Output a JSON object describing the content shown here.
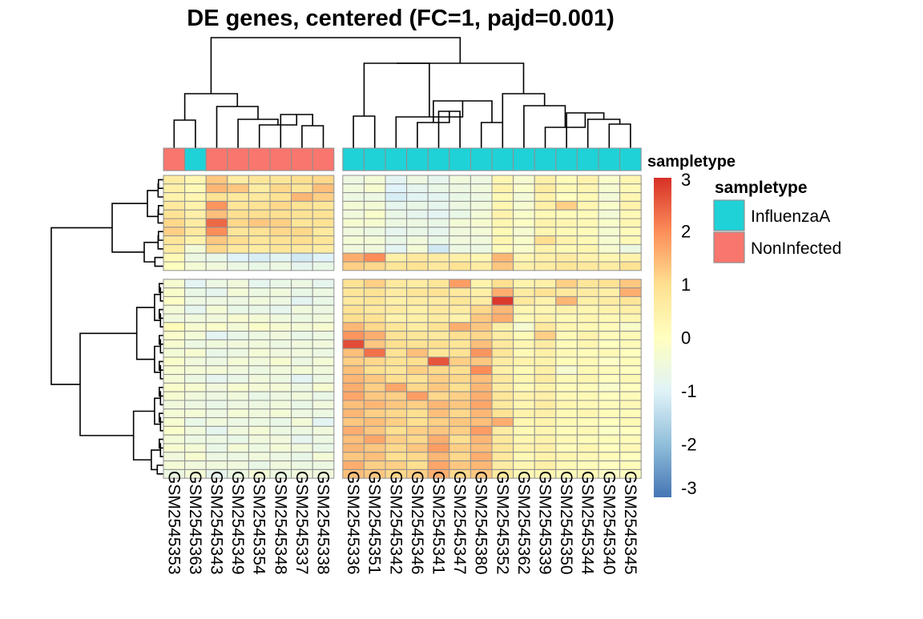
{
  "chart_data": {
    "type": "heatmap",
    "title": "DE genes, centered (FC=1, pajd=0.001)",
    "columns": [
      "GSM2545353",
      "GSM2545363",
      "GSM2545343",
      "GSM2545349",
      "GSM2545354",
      "GSM2545348",
      "GSM2545337",
      "GSM2545338",
      "GSM2545336",
      "GSM2545351",
      "GSM2545342",
      "GSM2545346",
      "GSM2545341",
      "GSM2545347",
      "GSM2545380",
      "GSM2545352",
      "GSM2545362",
      "GSM2545339",
      "GSM2545350",
      "GSM2545344",
      "GSM2545340",
      "GSM2545345"
    ],
    "column_gap_after": 8,
    "row_gap_after": 11,
    "annotation": {
      "title": "sampletype",
      "values": [
        "NonInfected",
        "InfluenzaA",
        "NonInfected",
        "NonInfected",
        "NonInfected",
        "NonInfected",
        "NonInfected",
        "NonInfected",
        "InfluenzaA",
        "InfluenzaA",
        "InfluenzaA",
        "InfluenzaA",
        "InfluenzaA",
        "InfluenzaA",
        "InfluenzaA",
        "InfluenzaA",
        "InfluenzaA",
        "InfluenzaA",
        "InfluenzaA",
        "InfluenzaA",
        "InfluenzaA",
        "InfluenzaA"
      ],
      "colors": {
        "InfluenzaA": "#1fd2d7",
        "NonInfected": "#f8766d"
      }
    },
    "legend": {
      "title": "sampletype",
      "entries": [
        {
          "label": "InfluenzaA",
          "color": "#1fd2d7"
        },
        {
          "label": "NonInfected",
          "color": "#f8766d"
        }
      ]
    },
    "colorbar": {
      "range": [
        -3,
        3
      ],
      "ticks": [
        "3",
        "2",
        "1",
        "0",
        "-1",
        "-2",
        "-3"
      ],
      "colors": [
        "#4575b4",
        "#91bfdb",
        "#e0f3f8",
        "#ffffbf",
        "#fee090",
        "#fc8d59",
        "#d73027"
      ]
    },
    "values": [
      [
        0.6,
        0.3,
        1.3,
        0.6,
        0.8,
        0.8,
        1.0,
        1.1,
        -0.6,
        -0.4,
        -0.9,
        -0.6,
        -0.8,
        -0.5,
        -0.6,
        0.3,
        -0.3,
        0.5,
        0.1,
        0.4,
        -0.2,
        0.3
      ],
      [
        0.5,
        0.2,
        1.5,
        1.3,
        0.6,
        1.1,
        0.8,
        1.4,
        -0.5,
        -0.3,
        -1.0,
        -0.8,
        -0.7,
        -0.6,
        -0.5,
        0.4,
        -0.2,
        0.6,
        0.2,
        0.3,
        -0.3,
        0.2
      ],
      [
        0.4,
        0.3,
        0.9,
        0.7,
        0.7,
        0.9,
        1.5,
        1.2,
        -0.6,
        -0.6,
        -1.1,
        -0.9,
        -0.9,
        -0.7,
        -0.6,
        0.2,
        -0.4,
        0.4,
        0.0,
        0.2,
        -0.4,
        0.3
      ],
      [
        0.7,
        0.4,
        1.9,
        0.8,
        0.9,
        1.1,
        0.9,
        0.8,
        -0.4,
        -0.4,
        -0.8,
        -0.7,
        -0.8,
        -0.6,
        -0.5,
        0.3,
        -0.3,
        0.5,
        1.2,
        0.3,
        -0.2,
        0.4
      ],
      [
        0.9,
        0.5,
        1.4,
        1.0,
        1.0,
        1.0,
        0.9,
        0.9,
        -0.5,
        -0.2,
        -0.7,
        -0.8,
        -0.9,
        -0.7,
        -0.4,
        0.4,
        -0.2,
        0.2,
        0.1,
        0.1,
        -0.4,
        0.2
      ],
      [
        1.1,
        0.6,
        2.4,
        1.1,
        1.3,
        1.2,
        0.8,
        0.9,
        -0.3,
        -0.3,
        -0.6,
        -0.6,
        -0.7,
        -0.4,
        -0.3,
        0.3,
        -0.1,
        0.4,
        0.3,
        0.2,
        -0.2,
        0.3
      ],
      [
        1.2,
        0.7,
        2.0,
        0.8,
        0.9,
        1.1,
        1.1,
        0.7,
        -0.5,
        -0.6,
        -0.8,
        -0.7,
        -0.8,
        -0.5,
        -0.4,
        0.2,
        -0.3,
        0.3,
        0.2,
        0.1,
        -0.3,
        0.1
      ],
      [
        0.8,
        0.4,
        1.3,
        1.0,
        0.8,
        0.9,
        1.0,
        0.8,
        -0.4,
        -0.4,
        -0.7,
        -0.5,
        -0.7,
        -0.5,
        -0.5,
        0.3,
        -0.2,
        1.0,
        0.4,
        0.2,
        -0.3,
        0.2
      ],
      [
        0.6,
        -0.4,
        1.1,
        0.7,
        0.6,
        0.8,
        0.7,
        0.6,
        -0.5,
        -0.5,
        -0.9,
        -0.4,
        -1.2,
        -0.6,
        -0.6,
        0.1,
        -0.2,
        0.4,
        0.2,
        0.3,
        -0.3,
        -0.6
      ],
      [
        0.2,
        -0.6,
        -0.7,
        -1.0,
        -1.1,
        -0.9,
        -1.2,
        -1.0,
        1.6,
        2.0,
        0.5,
        0.7,
        0.6,
        0.5,
        0.3,
        1.5,
        0.3,
        0.5,
        0.6,
        0.4,
        0.3,
        0.4
      ],
      [
        0.0,
        -0.4,
        -0.5,
        -0.6,
        -0.7,
        -0.6,
        -0.8,
        -0.7,
        1.2,
        1.1,
        0.8,
        0.9,
        0.7,
        0.9,
        0.6,
        1.3,
        0.5,
        0.6,
        0.8,
        0.7,
        0.6,
        0.9
      ],
      [
        -0.3,
        -0.9,
        -0.6,
        -0.5,
        -0.8,
        -0.7,
        -0.6,
        -0.8,
        0.9,
        1.2,
        0.7,
        0.6,
        0.8,
        1.8,
        0.4,
        1.0,
        0.4,
        0.5,
        1.2,
        0.8,
        0.9,
        1.3
      ],
      [
        -0.2,
        -0.7,
        -0.8,
        -0.4,
        -0.6,
        -0.5,
        -0.7,
        -0.6,
        0.8,
        0.9,
        0.6,
        0.8,
        0.9,
        0.7,
        0.5,
        1.6,
        0.6,
        0.9,
        0.7,
        0.6,
        0.5,
        1.6
      ],
      [
        -0.1,
        -0.6,
        -0.6,
        -0.6,
        -0.5,
        -0.6,
        -0.9,
        -0.7,
        0.7,
        0.8,
        0.5,
        0.6,
        0.6,
        0.8,
        0.6,
        2.9,
        0.7,
        0.4,
        1.5,
        0.5,
        0.6,
        0.8
      ],
      [
        -0.4,
        -0.8,
        -0.4,
        -0.7,
        -0.7,
        -0.8,
        -0.5,
        -0.6,
        0.9,
        0.7,
        0.6,
        0.5,
        0.7,
        0.6,
        1.1,
        1.5,
        0.3,
        0.3,
        0.4,
        0.3,
        0.4,
        0.5
      ],
      [
        -0.5,
        -0.5,
        -0.5,
        -0.3,
        -0.4,
        -0.5,
        -0.6,
        -0.5,
        1.0,
        0.9,
        0.4,
        0.5,
        0.6,
        0.4,
        1.3,
        1.6,
        0.2,
        0.4,
        0.2,
        0.3,
        0.2,
        0.3
      ],
      [
        0.1,
        -0.3,
        -0.2,
        -0.4,
        -0.2,
        -0.3,
        -0.4,
        -0.3,
        1.5,
        1.1,
        0.8,
        0.6,
        0.9,
        1.6,
        1.3,
        0.5,
        -0.3,
        0.7,
        0.3,
        0.2,
        0.1,
        -0.2
      ],
      [
        -0.2,
        -0.4,
        -0.9,
        -0.7,
        -0.6,
        -0.5,
        -0.7,
        -0.6,
        1.9,
        1.6,
        0.9,
        0.8,
        0.7,
        1.0,
        1.1,
        0.6,
        0.2,
        1.2,
        0.2,
        0.4,
        0.1,
        0.2
      ],
      [
        -0.3,
        -0.6,
        -0.5,
        -0.5,
        -0.5,
        -0.6,
        -0.5,
        -0.5,
        2.7,
        1.3,
        1.0,
        0.9,
        1.0,
        0.8,
        1.4,
        0.7,
        0.3,
        0.6,
        0.1,
        0.3,
        0.0,
        0.1
      ],
      [
        -0.4,
        -0.3,
        -0.7,
        -0.6,
        -0.4,
        -0.5,
        -0.5,
        -0.6,
        1.4,
        2.3,
        0.9,
        1.4,
        0.8,
        0.9,
        1.9,
        0.8,
        0.2,
        0.5,
        0.2,
        0.1,
        0.2,
        0.0
      ],
      [
        -0.2,
        -0.5,
        -0.6,
        -0.4,
        -0.5,
        -0.3,
        -0.6,
        -0.4,
        1.2,
        1.1,
        0.9,
        1.0,
        2.6,
        1.2,
        1.3,
        0.6,
        0.4,
        0.4,
        0.1,
        0.2,
        -0.1,
        0.1
      ],
      [
        -0.3,
        -0.4,
        -0.4,
        -0.5,
        -0.6,
        -0.5,
        -0.4,
        -0.5,
        1.4,
        1.0,
        0.8,
        1.2,
        1.1,
        1.0,
        2.0,
        0.5,
        0.2,
        0.5,
        -0.3,
        0.2,
        0.1,
        0.0
      ],
      [
        -0.4,
        -0.6,
        -0.8,
        -0.7,
        -0.5,
        -0.6,
        -0.9,
        -0.6,
        1.5,
        1.3,
        1.0,
        0.9,
        1.2,
        1.1,
        1.4,
        0.7,
        0.3,
        0.6,
        0.2,
        0.3,
        0.0,
        0.2
      ],
      [
        -0.2,
        -0.3,
        -0.5,
        -0.3,
        -0.4,
        -0.4,
        -0.6,
        -0.3,
        1.6,
        1.2,
        1.7,
        1.1,
        1.3,
        1.0,
        1.5,
        0.6,
        0.2,
        0.4,
        0.1,
        0.1,
        -0.2,
        0.0
      ],
      [
        -0.3,
        -0.5,
        -0.6,
        -0.5,
        -0.7,
        -0.6,
        -0.5,
        -0.7,
        1.7,
        1.3,
        1.2,
        1.8,
        1.1,
        1.2,
        1.6,
        0.8,
        0.4,
        0.5,
        0.2,
        0.2,
        0.0,
        0.1
      ],
      [
        -0.5,
        -0.6,
        -0.7,
        -0.6,
        -0.6,
        -0.5,
        -0.7,
        -0.5,
        1.4,
        1.5,
        1.3,
        1.2,
        1.5,
        1.3,
        1.7,
        0.7,
        0.3,
        0.6,
        0.3,
        0.2,
        0.1,
        0.2
      ],
      [
        -0.4,
        -0.4,
        -0.6,
        -0.4,
        -0.5,
        -0.4,
        -0.6,
        -0.6,
        1.5,
        1.2,
        1.1,
        1.0,
        1.4,
        1.1,
        1.5,
        0.9,
        0.4,
        0.5,
        0.2,
        0.3,
        0.1,
        0.1
      ],
      [
        -0.3,
        -0.7,
        -0.5,
        -0.6,
        -0.6,
        -0.7,
        -0.4,
        -0.9,
        1.3,
        1.4,
        1.2,
        1.0,
        1.2,
        1.3,
        1.4,
        1.6,
        0.3,
        0.4,
        0.2,
        0.1,
        0.0,
        0.2
      ],
      [
        -0.2,
        -0.5,
        -0.8,
        -0.5,
        -0.4,
        -0.6,
        -0.6,
        -0.5,
        1.6,
        1.3,
        1.0,
        1.2,
        1.3,
        1.2,
        1.8,
        0.6,
        0.2,
        0.3,
        0.1,
        0.2,
        -0.1,
        0.0
      ],
      [
        -0.4,
        -0.6,
        -0.6,
        -0.7,
        -0.5,
        -0.5,
        -0.8,
        -0.6,
        1.4,
        1.7,
        1.2,
        1.1,
        1.6,
        1.0,
        1.5,
        0.7,
        0.3,
        0.4,
        0.2,
        0.1,
        0.1,
        0.1
      ],
      [
        -0.3,
        -0.4,
        -0.7,
        -0.4,
        -0.6,
        -0.4,
        -0.5,
        -0.7,
        1.5,
        1.3,
        1.1,
        1.3,
        1.8,
        1.2,
        1.4,
        0.8,
        0.4,
        0.5,
        0.1,
        0.3,
        0.0,
        0.2
      ],
      [
        -0.5,
        -0.3,
        -0.6,
        -0.6,
        -0.5,
        -0.6,
        -0.7,
        -0.4,
        1.3,
        1.4,
        1.0,
        1.1,
        1.5,
        1.1,
        1.6,
        0.7,
        0.2,
        0.4,
        0.3,
        0.2,
        0.1,
        0.0
      ],
      [
        -0.4,
        -0.5,
        -0.5,
        -0.5,
        -0.7,
        -0.5,
        -0.6,
        -0.6,
        1.6,
        1.2,
        1.2,
        1.0,
        1.7,
        1.3,
        1.5,
        0.6,
        0.3,
        0.5,
        0.2,
        0.1,
        0.0,
        0.1
      ],
      [
        -0.6,
        -0.4,
        -0.8,
        -0.6,
        -0.4,
        -0.6,
        -0.5,
        -0.5,
        1.4,
        1.3,
        1.1,
        1.2,
        1.6,
        1.1,
        1.3,
        0.7,
        0.2,
        0.3,
        0.1,
        0.2,
        -0.1,
        0.0
      ]
    ]
  }
}
